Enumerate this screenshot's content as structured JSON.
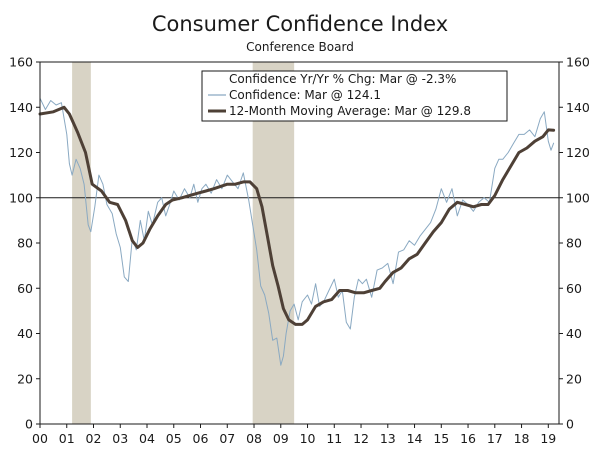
{
  "chart_data": {
    "type": "line",
    "title": "Consumer Confidence Index",
    "subtitle": "Conference Board",
    "xlabel": "",
    "ylabel": "",
    "xlim": [
      2000.0,
      2019.4
    ],
    "ylim": [
      0,
      160
    ],
    "y_ticks": [
      0,
      20,
      40,
      60,
      80,
      100,
      120,
      140,
      160
    ],
    "x_ticks": [
      {
        "value": 2000.0,
        "label": "00"
      },
      {
        "value": 2001.0,
        "label": "01"
      },
      {
        "value": 2002.0,
        "label": "02"
      },
      {
        "value": 2003.0,
        "label": "03"
      },
      {
        "value": 2004.0,
        "label": "04"
      },
      {
        "value": 2005.0,
        "label": "05"
      },
      {
        "value": 2006.0,
        "label": "06"
      },
      {
        "value": 2007.0,
        "label": "07"
      },
      {
        "value": 2008.0,
        "label": "08"
      },
      {
        "value": 2009.0,
        "label": "09"
      },
      {
        "value": 2010.0,
        "label": "10"
      },
      {
        "value": 2011.0,
        "label": "11"
      },
      {
        "value": 2012.0,
        "label": "12"
      },
      {
        "value": 2013.0,
        "label": "13"
      },
      {
        "value": 2014.0,
        "label": "14"
      },
      {
        "value": 2015.0,
        "label": "15"
      },
      {
        "value": 2016.0,
        "label": "16"
      },
      {
        "value": 2017.0,
        "label": "17"
      },
      {
        "value": 2018.0,
        "label": "18"
      },
      {
        "value": 2019.0,
        "label": "19"
      }
    ],
    "reference_line": 100,
    "recessions": [
      [
        2001.2,
        2001.9
      ],
      [
        2007.95,
        2009.5
      ]
    ],
    "legend": {
      "placement": "top-right",
      "entries": [
        "Confidence Yr/Yr % Chg: Mar @ -2.3%",
        "Confidence: Mar @ 124.1",
        "12-Month Moving Average: Mar @ 129.8"
      ]
    },
    "series": [
      {
        "name": "Confidence",
        "color": "#8aa9c2",
        "x": [
          2000.0,
          2000.2,
          2000.4,
          2000.6,
          2000.8,
          2001.0,
          2001.1,
          2001.2,
          2001.35,
          2001.5,
          2001.65,
          2001.8,
          2001.9,
          2002.05,
          2002.2,
          2002.35,
          2002.5,
          2002.7,
          2002.85,
          2003.0,
          2003.15,
          2003.3,
          2003.45,
          2003.6,
          2003.75,
          2003.9,
          2004.05,
          2004.2,
          2004.4,
          2004.55,
          2004.7,
          2004.85,
          2005.0,
          2005.2,
          2005.4,
          2005.6,
          2005.75,
          2005.9,
          2006.05,
          2006.2,
          2006.4,
          2006.6,
          2006.8,
          2007.0,
          2007.2,
          2007.4,
          2007.6,
          2007.8,
          2007.95,
          2008.1,
          2008.25,
          2008.4,
          2008.55,
          2008.7,
          2008.85,
          2009.0,
          2009.1,
          2009.2,
          2009.35,
          2009.5,
          2009.65,
          2009.8,
          2010.0,
          2010.15,
          2010.3,
          2010.45,
          2010.6,
          2010.8,
          2011.0,
          2011.15,
          2011.3,
          2011.45,
          2011.6,
          2011.75,
          2011.9,
          2012.05,
          2012.2,
          2012.4,
          2012.6,
          2012.8,
          2013.0,
          2013.2,
          2013.4,
          2013.6,
          2013.8,
          2014.0,
          2014.2,
          2014.4,
          2014.6,
          2014.8,
          2015.0,
          2015.2,
          2015.4,
          2015.6,
          2015.8,
          2016.0,
          2016.2,
          2016.4,
          2016.6,
          2016.8,
          2017.0,
          2017.15,
          2017.3,
          2017.5,
          2017.7,
          2017.9,
          2018.1,
          2018.3,
          2018.5,
          2018.7,
          2018.85,
          2019.0,
          2019.1,
          2019.2
        ],
        "values": [
          144,
          139,
          143,
          141,
          142,
          128,
          115,
          110,
          117,
          113,
          106,
          88,
          85,
          96,
          110,
          106,
          97,
          93,
          84,
          78,
          65,
          63,
          82,
          77,
          90,
          81,
          94,
          88,
          98,
          100,
          92,
          97,
          103,
          99,
          104,
          100,
          106,
          98,
          104,
          106,
          102,
          108,
          104,
          110,
          107,
          104,
          111,
          99,
          88,
          77,
          61,
          57,
          49,
          37,
          38,
          26,
          30,
          40,
          50,
          53,
          46,
          54,
          57,
          53,
          62,
          52,
          54,
          59,
          64,
          56,
          59,
          45,
          42,
          56,
          64,
          62,
          64,
          56,
          68,
          69,
          71,
          62,
          76,
          77,
          81,
          79,
          83,
          86,
          89,
          95,
          104,
          98,
          104,
          92,
          99,
          97,
          94,
          98,
          100,
          98,
          113,
          117,
          117,
          120,
          124,
          128,
          128,
          130,
          127,
          135,
          138,
          125,
          121,
          124.1
        ]
      },
      {
        "name": "12-Month Moving Average",
        "color": "#4e4036",
        "x": [
          2000.0,
          2000.5,
          2000.9,
          2001.1,
          2001.4,
          2001.7,
          2001.95,
          2002.3,
          2002.6,
          2002.9,
          2003.2,
          2003.45,
          2003.65,
          2003.85,
          2004.1,
          2004.4,
          2004.7,
          2004.95,
          2005.3,
          2005.6,
          2005.9,
          2006.2,
          2006.5,
          2006.75,
          2007.0,
          2007.3,
          2007.6,
          2007.85,
          2008.1,
          2008.3,
          2008.5,
          2008.7,
          2008.9,
          2009.1,
          2009.3,
          2009.55,
          2009.8,
          2010.0,
          2010.3,
          2010.6,
          2010.9,
          2011.2,
          2011.5,
          2011.8,
          2012.1,
          2012.4,
          2012.7,
          2012.9,
          2013.2,
          2013.5,
          2013.8,
          2014.1,
          2014.4,
          2014.7,
          2015.0,
          2015.3,
          2015.6,
          2015.9,
          2016.2,
          2016.5,
          2016.75,
          2017.0,
          2017.3,
          2017.6,
          2017.9,
          2018.2,
          2018.5,
          2018.8,
          2019.0,
          2019.2
        ],
        "values": [
          137,
          138,
          140,
          137,
          129,
          120,
          106,
          103,
          98,
          97,
          90,
          81,
          78,
          80,
          86,
          92,
          97,
          99,
          100,
          101,
          102,
          103,
          104,
          105,
          106,
          106,
          107,
          107,
          104,
          96,
          83,
          70,
          61,
          51,
          46,
          44,
          44,
          46,
          52,
          54,
          55,
          59,
          59,
          58,
          58,
          59,
          60,
          63,
          67,
          69,
          73,
          75,
          80,
          85,
          89,
          95,
          98,
          97,
          96,
          97,
          97,
          101,
          108,
          114,
          120,
          122,
          125,
          127,
          130,
          129.8
        ]
      }
    ]
  }
}
